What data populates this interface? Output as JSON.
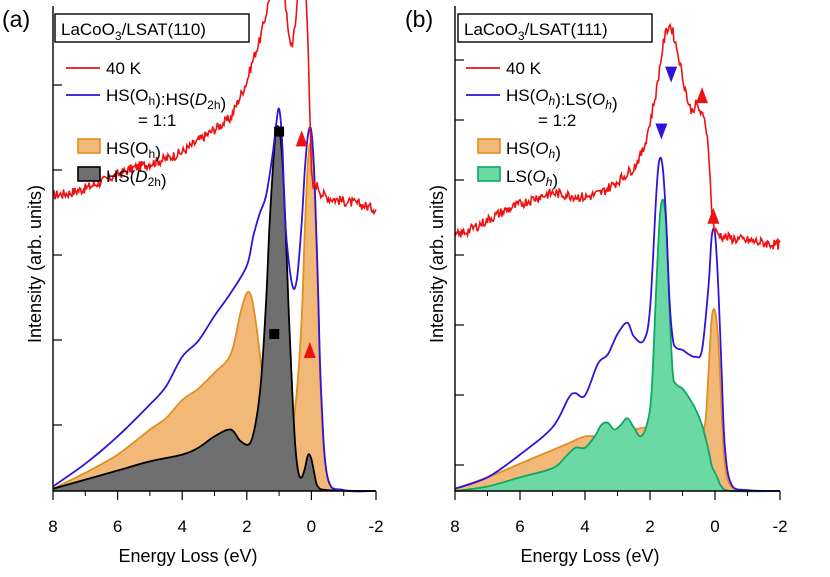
{
  "colors": {
    "exp": "#ee1111",
    "total": "#3311dd",
    "oh_fill": "#f2b878",
    "oh_line": "#e08f22",
    "d2h_fill": "#6f6f6f",
    "ls_fill": "#6cd8a4",
    "ls_line": "#0ca864",
    "red_marker": "#ee1111",
    "blue_marker": "#3311dd"
  },
  "chart_data": [
    {
      "type": "line",
      "panel_label": "(a)",
      "title_box": {
        "prefix": "LaCoO",
        "sub": "3",
        "suffix": "/LSAT(110)"
      },
      "xlabel": "Energy Loss (eV)",
      "ylabel": "Intensity (arb. units)",
      "xlim": [
        8,
        -2
      ],
      "ylim": [
        0,
        10
      ],
      "xticks": [
        8,
        6,
        4,
        2,
        0,
        -2
      ],
      "xtick_labels": [
        "8",
        "6",
        "4",
        "2",
        "0",
        "-2"
      ],
      "legend": [
        {
          "kind": "line",
          "color_key": "exp",
          "parts": [
            {
              "t": "40 K"
            }
          ]
        },
        {
          "kind": "line",
          "color_key": "total",
          "parts": [
            {
              "t": "HS(O"
            },
            {
              "t": "h",
              "style": "sub"
            },
            {
              "t": "):HS("
            },
            {
              "t": "D",
              "style": "italic"
            },
            {
              "t": "2h",
              "style": "sub"
            },
            {
              "t": ")"
            }
          ]
        },
        {
          "kind": "text",
          "parts": [
            {
              "t": "= 1:1"
            }
          ]
        },
        {
          "kind": "fill",
          "fill_key": "oh_fill",
          "line_key": "oh_line",
          "parts": [
            {
              "t": "HS(O"
            },
            {
              "t": "h",
              "style": "sub"
            },
            {
              "t": ")"
            }
          ]
        },
        {
          "kind": "fill",
          "fill_key": "d2h_fill",
          "line_key": "black",
          "parts": [
            {
              "t": "HS("
            },
            {
              "t": "D",
              "style": "italic"
            },
            {
              "t": "2h",
              "style": "sub"
            },
            {
              "t": ")"
            }
          ]
        }
      ],
      "experiment": {
        "name": "40 K",
        "offset": 6.4,
        "noise": 0.05,
        "x": [
          8,
          7.5,
          7,
          6.5,
          6,
          5.5,
          5,
          4.5,
          4,
          3.5,
          3,
          2.5,
          2,
          1.8,
          1.6,
          1.4,
          1.2,
          1.1,
          1.0,
          0.9,
          0.8,
          0.7,
          0.6,
          0.5,
          0.4,
          0.3,
          0.2,
          0.1,
          0.05,
          0.0,
          -0.05,
          -0.1,
          -0.2,
          -0.3,
          -0.5,
          -1,
          -1.5,
          -2
        ],
        "y": [
          0.1,
          0.15,
          0.25,
          0.4,
          0.55,
          0.7,
          0.8,
          0.9,
          1.05,
          1.3,
          1.55,
          1.8,
          2.6,
          3.1,
          3.5,
          4.1,
          4.8,
          5.6,
          5.9,
          5.3,
          4.3,
          3.55,
          3.4,
          3.8,
          4.8,
          5.3,
          5.0,
          3.5,
          1.9,
          0.6,
          0.25,
          0.35,
          0.3,
          0.15,
          0.05,
          -0.03,
          -0.1,
          -0.2
        ]
      },
      "series": [
        {
          "name": "HS(Oh):HS(D2h) total",
          "style": "line",
          "color_key": "total",
          "x": [
            8,
            7,
            6,
            5,
            4.5,
            4,
            3.5,
            3,
            2.5,
            2,
            1.8,
            1.6,
            1.4,
            1.2,
            1.1,
            1.0,
            0.9,
            0.8,
            0.6,
            0.45,
            0.3,
            0.2,
            0.1,
            0.0,
            -0.1,
            -0.2,
            -0.3,
            -0.5,
            -1,
            -2
          ],
          "y": [
            0.1,
            0.6,
            1.2,
            1.9,
            2.3,
            2.95,
            3.3,
            3.85,
            4.35,
            4.95,
            5.6,
            6.1,
            6.5,
            7.4,
            8.0,
            8.4,
            7.6,
            5.8,
            4.55,
            4.65,
            5.9,
            7.1,
            7.85,
            7.9,
            6.8,
            4.6,
            2.2,
            0.3,
            0.02,
            0.0
          ]
        },
        {
          "name": "HS(Oh)",
          "style": "fill",
          "fill_key": "oh_fill",
          "line_key": "oh_line",
          "x": [
            8,
            7,
            6,
            5,
            4.5,
            4,
            3.5,
            3,
            2.5,
            2.2,
            2.0,
            1.85,
            1.7,
            1.5,
            1.3,
            1.1,
            1.0,
            0.9,
            0.8,
            0.6,
            0.45,
            0.3,
            0.2,
            0.1,
            0.0,
            -0.1,
            -0.2,
            -0.3,
            -0.5,
            -1,
            -2
          ],
          "y": [
            0.05,
            0.4,
            0.8,
            1.35,
            1.6,
            2.0,
            2.25,
            2.6,
            3.0,
            3.9,
            4.35,
            4.25,
            3.6,
            2.5,
            1.8,
            1.4,
            1.3,
            1.25,
            1.25,
            1.4,
            2.2,
            3.8,
            5.8,
            7.3,
            7.6,
            6.6,
            4.4,
            2.0,
            0.3,
            0.02,
            0.0
          ]
        },
        {
          "name": "HS(D2h)",
          "style": "fill",
          "fill_key": "d2h_fill",
          "line_key": "black",
          "x": [
            8,
            7,
            6,
            5,
            4,
            3.5,
            3,
            2.5,
            2.2,
            1.9,
            1.7,
            1.55,
            1.4,
            1.3,
            1.2,
            1.1,
            1.0,
            0.9,
            0.8,
            0.7,
            0.6,
            0.5,
            0.4,
            0.3,
            0.2,
            0.1,
            0.0,
            -0.1,
            -0.2,
            -0.5,
            -2
          ],
          "y": [
            0.05,
            0.25,
            0.45,
            0.65,
            0.8,
            0.95,
            1.2,
            1.35,
            1.1,
            1.05,
            1.6,
            2.5,
            4.2,
            5.8,
            7.0,
            7.9,
            7.95,
            7.3,
            5.8,
            3.9,
            2.3,
            1.0,
            0.4,
            0.3,
            0.5,
            0.8,
            0.7,
            0.35,
            0.1,
            0.02,
            0.0
          ]
        }
      ],
      "markers": [
        {
          "shape": "square",
          "color_key": "black",
          "x": 1.0,
          "y": 7.9,
          "label": "upper"
        },
        {
          "shape": "up-triangle",
          "color_key": "red_marker",
          "x": 0.3,
          "y": 7.75,
          "label": "upper"
        },
        {
          "shape": "square",
          "color_key": "black",
          "x": 1.15,
          "y": 3.45,
          "label": "lower"
        },
        {
          "shape": "up-triangle",
          "color_key": "red_marker",
          "x": 0.05,
          "y": 3.1,
          "label": "lower"
        }
      ]
    },
    {
      "type": "line",
      "panel_label": "(b)",
      "title_box": {
        "prefix": "LaCoO",
        "sub": "3",
        "suffix": "/LSAT(111)"
      },
      "xlabel": "Energy Loss (eV)",
      "ylabel": "Intensity (arb. units)",
      "xlim": [
        8,
        -2
      ],
      "ylim": [
        0,
        10
      ],
      "xticks": [
        8,
        6,
        4,
        2,
        0,
        -2
      ],
      "xtick_labels": [
        "8",
        "6",
        "4",
        "2",
        "0",
        "-2"
      ],
      "legend": [
        {
          "kind": "line",
          "color_key": "exp",
          "parts": [
            {
              "t": "40 K"
            }
          ]
        },
        {
          "kind": "line",
          "color_key": "total",
          "parts": [
            {
              "t": "HS("
            },
            {
              "t": "O",
              "style": "italic"
            },
            {
              "t": "h",
              "style": "subi"
            },
            {
              "t": "):LS("
            },
            {
              "t": "O",
              "style": "italic"
            },
            {
              "t": "h",
              "style": "subi"
            },
            {
              "t": ")"
            }
          ]
        },
        {
          "kind": "text",
          "parts": [
            {
              "t": "= 1:2"
            }
          ]
        },
        {
          "kind": "fill",
          "fill_key": "oh_fill",
          "line_key": "oh_line",
          "parts": [
            {
              "t": "HS("
            },
            {
              "t": "O",
              "style": "italic"
            },
            {
              "t": "h",
              "style": "subi"
            },
            {
              "t": ")"
            }
          ]
        },
        {
          "kind": "fill",
          "fill_key": "ls_fill",
          "line_key": "ls_line",
          "parts": [
            {
              "t": "LS("
            },
            {
              "t": "O",
              "style": "italic"
            },
            {
              "t": "h",
              "style": "subi"
            },
            {
              "t": ")"
            }
          ]
        }
      ],
      "experiment": {
        "name": "40 K",
        "offset": 5.5,
        "noise": 0.05,
        "x": [
          8,
          7.5,
          7,
          6.5,
          6,
          5.5,
          5,
          4.5,
          4,
          3.5,
          3,
          2.5,
          2.2,
          2.0,
          1.8,
          1.6,
          1.5,
          1.4,
          1.3,
          1.2,
          1.1,
          1.0,
          0.9,
          0.8,
          0.7,
          0.6,
          0.5,
          0.4,
          0.3,
          0.2,
          0.1,
          0.0,
          -0.2,
          -0.5,
          -1,
          -1.5,
          -2
        ],
        "y": [
          0.1,
          0.25,
          0.45,
          0.65,
          0.8,
          0.95,
          1.05,
          1.0,
          0.95,
          1.05,
          1.3,
          1.6,
          2.0,
          2.6,
          3.3,
          4.3,
          4.6,
          4.75,
          4.6,
          4.3,
          4.0,
          3.6,
          3.3,
          2.95,
          2.85,
          3.0,
          2.9,
          2.75,
          2.6,
          2.1,
          0.6,
          0.2,
          0.1,
          0.05,
          0.0,
          -0.05,
          -0.1
        ]
      },
      "series": [
        {
          "name": "HS(Oh):LS(Oh) total",
          "style": "line",
          "color_key": "total",
          "x": [
            8,
            7,
            6,
            5,
            4.5,
            4.3,
            4,
            3.6,
            3.3,
            3.0,
            2.7,
            2.5,
            2.2,
            2.0,
            1.8,
            1.7,
            1.6,
            1.5,
            1.4,
            1.3,
            1.2,
            1.0,
            0.8,
            0.6,
            0.4,
            0.2,
            0.1,
            0.0,
            -0.1,
            -0.2,
            -0.3,
            -0.5,
            -1,
            -2
          ],
          "y": [
            0.05,
            0.3,
            0.8,
            1.4,
            2.05,
            2.15,
            2.1,
            2.8,
            3.0,
            3.45,
            3.7,
            3.4,
            3.3,
            4.0,
            6.6,
            7.3,
            7.05,
            5.9,
            4.2,
            3.35,
            3.15,
            3.1,
            3.0,
            2.95,
            3.1,
            4.5,
            5.6,
            5.65,
            4.5,
            2.7,
            1.0,
            0.15,
            0.02,
            0.0
          ]
        },
        {
          "name": "HS(Oh)",
          "style": "fill",
          "fill_key": "oh_fill",
          "line_key": "oh_line",
          "x": [
            8,
            7,
            6,
            5,
            4.5,
            4,
            3.5,
            3,
            2.5,
            2,
            1.5,
            1.2,
            1.0,
            0.7,
            0.5,
            0.3,
            0.2,
            0.1,
            0.0,
            -0.1,
            -0.2,
            -0.3,
            -0.5,
            -1,
            -2
          ],
          "y": [
            0.05,
            0.3,
            0.6,
            0.9,
            1.05,
            1.2,
            1.2,
            1.25,
            1.35,
            1.4,
            1.3,
            1.15,
            1.1,
            1.05,
            1.05,
            1.5,
            2.6,
            3.8,
            3.95,
            3.3,
            1.8,
            0.6,
            0.1,
            0.01,
            0.0
          ]
        },
        {
          "name": "LS(Oh)",
          "style": "fill",
          "fill_key": "ls_fill",
          "line_key": "ls_line",
          "x": [
            8,
            7,
            6,
            5,
            4.6,
            4.3,
            4.0,
            3.7,
            3.5,
            3.3,
            3.1,
            2.9,
            2.7,
            2.5,
            2.3,
            2.1,
            1.95,
            1.8,
            1.7,
            1.6,
            1.5,
            1.4,
            1.3,
            1.2,
            1.0,
            0.8,
            0.6,
            0.4,
            0.2,
            0.1,
            0.0,
            -0.1,
            -0.2,
            -0.5,
            -2
          ],
          "y": [
            0.0,
            0.1,
            0.3,
            0.5,
            0.75,
            0.95,
            0.95,
            1.2,
            1.45,
            1.5,
            1.35,
            1.45,
            1.6,
            1.4,
            1.2,
            1.45,
            2.2,
            4.6,
            6.0,
            6.4,
            5.8,
            4.0,
            2.6,
            2.35,
            2.25,
            2.05,
            1.8,
            1.45,
            0.9,
            0.55,
            0.4,
            0.25,
            0.1,
            0.0,
            0.0
          ]
        }
      ],
      "markers": [
        {
          "shape": "down-triangle",
          "color_key": "blue_marker",
          "x": 1.35,
          "y": 9.15,
          "label": "upper"
        },
        {
          "shape": "up-triangle",
          "color_key": "red_marker",
          "x": 0.4,
          "y": 8.7,
          "label": "upper"
        },
        {
          "shape": "down-triangle",
          "color_key": "blue_marker",
          "x": 1.65,
          "y": 7.9,
          "label": "lower"
        },
        {
          "shape": "up-triangle",
          "color_key": "red_marker",
          "x": 0.05,
          "y": 6.05,
          "label": "lower"
        }
      ]
    }
  ]
}
